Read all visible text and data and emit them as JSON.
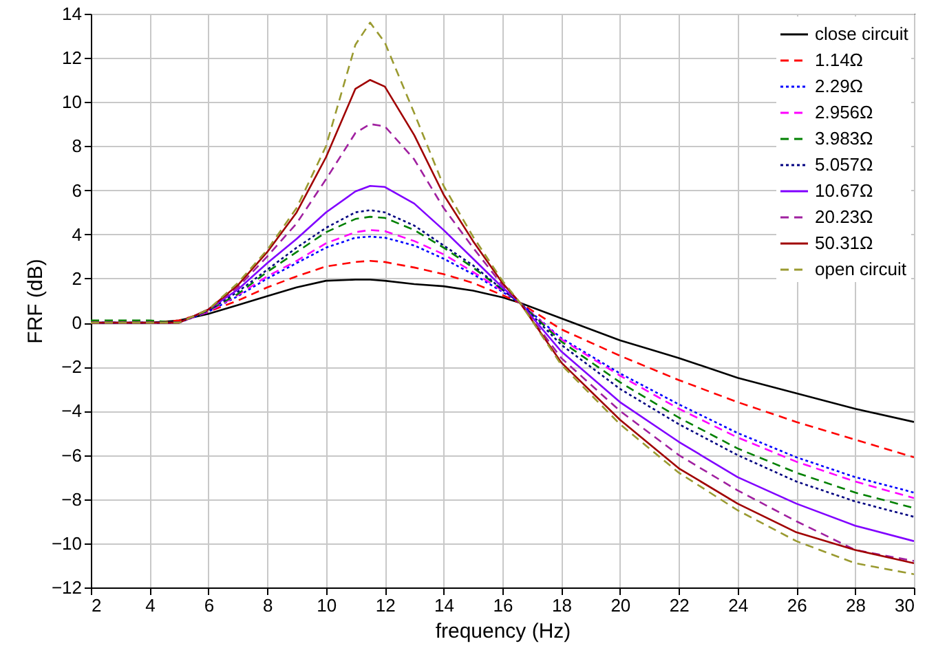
{
  "chart_data": {
    "type": "line",
    "xlabel": "frequency (Hz)",
    "ylabel": "FRF (dB)",
    "x": [
      2,
      4,
      5,
      6,
      7,
      8,
      9,
      10,
      11,
      11.5,
      12,
      13,
      14,
      15,
      16,
      16.6,
      18,
      20,
      22,
      24,
      26,
      28,
      30
    ],
    "xlim": [
      2,
      30
    ],
    "xticks": [
      2,
      4,
      6,
      8,
      10,
      12,
      14,
      16,
      18,
      20,
      22,
      24,
      26,
      28,
      30
    ],
    "ylim": [
      -12,
      14
    ],
    "yticks": [
      -12,
      -10,
      -8,
      -6,
      -4,
      -2,
      0,
      2,
      4,
      6,
      8,
      10,
      12,
      14
    ],
    "grid": true,
    "legend": "top right",
    "marker": "none",
    "series": [
      {
        "name": "close circuit",
        "color": "#000000",
        "line_style": "solid",
        "values": [
          0,
          0,
          0.1,
          0.4,
          0.8,
          1.2,
          1.6,
          1.9,
          1.95,
          1.95,
          1.9,
          1.75,
          1.65,
          1.45,
          1.15,
          0.9,
          0.2,
          -0.8,
          -1.6,
          -2.5,
          -3.2,
          -3.9,
          -4.5
        ]
      },
      {
        "name": "1.14Ω",
        "color": "#ff0000",
        "line_style": "dashed",
        "values": [
          0,
          0,
          0.1,
          0.5,
          1.0,
          1.6,
          2.1,
          2.55,
          2.75,
          2.8,
          2.75,
          2.5,
          2.2,
          1.8,
          1.25,
          0.9,
          -0.3,
          -1.5,
          -2.6,
          -3.6,
          -4.5,
          -5.3,
          -6.1
        ]
      },
      {
        "name": "2.29Ω",
        "color": "#0000ff",
        "line_style": "dotted",
        "values": [
          0,
          0,
          0,
          0.5,
          1.2,
          2.0,
          2.7,
          3.4,
          3.85,
          3.9,
          3.85,
          3.5,
          2.9,
          2.2,
          1.4,
          0.9,
          -0.7,
          -2.3,
          -3.7,
          -5.0,
          -6.1,
          -7.0,
          -7.7
        ]
      },
      {
        "name": "2.956Ω",
        "color": "#ff00ff",
        "line_style": "dashed",
        "values": [
          0,
          0,
          0,
          0.5,
          1.25,
          2.1,
          2.8,
          3.6,
          4.1,
          4.2,
          4.15,
          3.7,
          3.1,
          2.3,
          1.45,
          0.9,
          -0.75,
          -2.4,
          -3.9,
          -5.2,
          -6.3,
          -7.2,
          -7.95
        ]
      },
      {
        "name": "3.983Ω",
        "color": "#008000",
        "line_style": "dashed",
        "values": [
          0.1,
          0.1,
          0,
          0.55,
          1.3,
          2.3,
          3.2,
          4.1,
          4.7,
          4.8,
          4.75,
          4.2,
          3.4,
          2.5,
          1.5,
          0.9,
          -0.85,
          -2.7,
          -4.3,
          -5.7,
          -6.8,
          -7.7,
          -8.4
        ]
      },
      {
        "name": "5.057Ω",
        "color": "#000080",
        "line_style": "dotted",
        "values": [
          0,
          0,
          0,
          0.55,
          1.4,
          2.4,
          3.4,
          4.3,
          5.0,
          5.1,
          5.0,
          4.4,
          3.5,
          2.6,
          1.5,
          0.9,
          -1.0,
          -3.0,
          -4.6,
          -6.0,
          -7.2,
          -8.1,
          -8.8
        ]
      },
      {
        "name": "10.67Ω",
        "color": "#8000ff",
        "line_style": "solid",
        "values": [
          0,
          0,
          0,
          0.6,
          1.5,
          2.7,
          3.8,
          5.0,
          5.95,
          6.2,
          6.15,
          5.4,
          4.2,
          2.9,
          1.6,
          0.9,
          -1.3,
          -3.6,
          -5.4,
          -7.0,
          -8.2,
          -9.2,
          -9.9
        ]
      },
      {
        "name": "20.23Ω",
        "color": "#a020a0",
        "line_style": "dashed",
        "values": [
          0,
          0,
          0,
          0.6,
          1.6,
          3.0,
          4.5,
          6.5,
          8.6,
          9.0,
          8.9,
          7.4,
          5.2,
          3.4,
          1.7,
          0.9,
          -1.6,
          -4.0,
          -6.0,
          -7.6,
          -9.0,
          -10.3,
          -10.8
        ]
      },
      {
        "name": "50.31Ω",
        "color": "#a00000",
        "line_style": "solid",
        "values": [
          0,
          0,
          0,
          0.6,
          1.7,
          3.2,
          5.0,
          7.5,
          10.6,
          11.0,
          10.7,
          8.5,
          5.8,
          3.7,
          1.8,
          0.9,
          -1.8,
          -4.4,
          -6.6,
          -8.2,
          -9.5,
          -10.3,
          -10.9
        ]
      },
      {
        "name": "open circuit",
        "color": "#9a9a30",
        "line_style": "dashed",
        "values": [
          0,
          0,
          0,
          0.6,
          1.8,
          3.3,
          5.2,
          8.0,
          12.6,
          13.6,
          12.7,
          9.5,
          6.2,
          3.9,
          1.9,
          0.9,
          -1.9,
          -4.6,
          -6.8,
          -8.5,
          -9.9,
          -10.9,
          -11.4
        ]
      }
    ]
  }
}
